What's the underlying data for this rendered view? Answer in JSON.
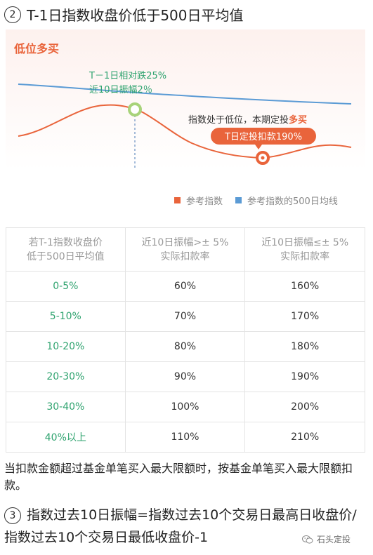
{
  "section2": {
    "number": "2",
    "title": "T-1日指数收盘价低于500日平均值"
  },
  "chart": {
    "heading": "低位多买",
    "callout_top_line1": "T－1日相对跌25%",
    "callout_top_line2": "近10日振幅2％",
    "callout_mid_text": "指数处于低位，本期定投",
    "callout_mid_emphasis": "多买",
    "callout_badge": "T日定投扣款190%",
    "colors": {
      "index_line": "#e9643b",
      "avg_line": "#5b9bd5",
      "green": "#2fa36f",
      "heading_red": "#e9643b"
    }
  },
  "legend": {
    "items": [
      {
        "label": "参考指数",
        "color": "#e9643b"
      },
      {
        "label": "参考指数的500日均线",
        "color": "#5b9bd5"
      }
    ]
  },
  "table": {
    "headers": [
      [
        "若T-1指数收盘价",
        "低于500日平均值"
      ],
      [
        "近10日振幅>± 5%",
        "实际扣款率"
      ],
      [
        "近10日振幅≤± 5%",
        "实际扣款率"
      ]
    ],
    "rows": [
      [
        "0-5%",
        "60%",
        "160%"
      ],
      [
        "5-10%",
        "70%",
        "170%"
      ],
      [
        "10-20%",
        "80%",
        "180%"
      ],
      [
        "20-30%",
        "90%",
        "190%"
      ],
      [
        "30-40%",
        "100%",
        "200%"
      ],
      [
        "40%以上",
        "110%",
        "210%"
      ]
    ]
  },
  "note": "当扣款金额超过基金单笔买入最大限额时，按基金单笔买入最大限额扣款。",
  "section3": {
    "number": "3",
    "text": "指数过去10日振幅=指数过去10个交易日最高日收盘价/指数过去10个交易日最低收盘价-1"
  },
  "watermark": {
    "icon": "wechat-icon",
    "label": "石头定投"
  }
}
